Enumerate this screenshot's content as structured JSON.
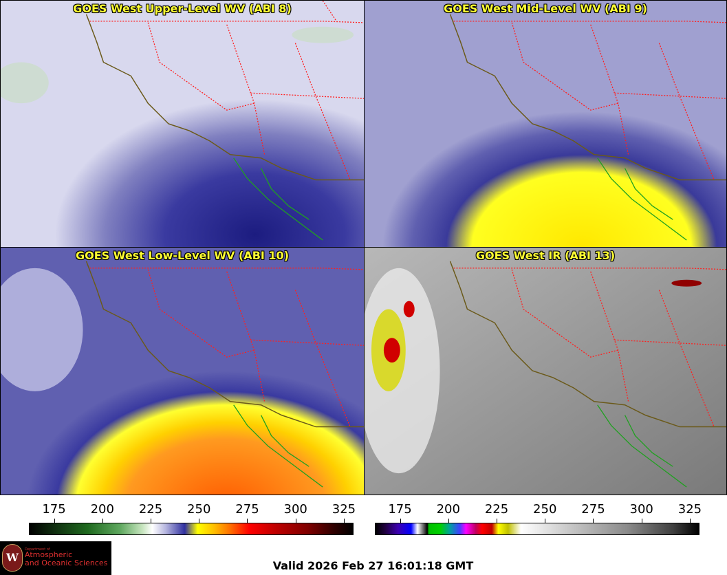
{
  "panels": [
    {
      "title": "GOES West Upper-Level WV (ABI 8)"
    },
    {
      "title": "GOES West Mid-Level WV (ABI 9)"
    },
    {
      "title": "GOES West Low-Level WV (ABI 10)"
    },
    {
      "title": "GOES West IR (ABI 13)"
    }
  ],
  "colorbars": {
    "left": {
      "ticks": [
        "175",
        "200",
        "225",
        "250",
        "275",
        "300",
        "325"
      ],
      "range": [
        162,
        330
      ]
    },
    "right": {
      "ticks": [
        "175",
        "200",
        "225",
        "250",
        "275",
        "300",
        "325"
      ],
      "range": [
        162,
        330
      ]
    }
  },
  "logo": {
    "small": "Department of",
    "line1": "Atmospheric",
    "line2": "and Oceanic Sciences",
    "seal_letter": "W"
  },
  "footer": {
    "valid": "Valid 2026 Feb 27 16:01:18 GMT"
  },
  "colors": {
    "title_text": "#ffff33",
    "state_borders": "#ff2020",
    "coastline": "#6b5a1a",
    "mexico_coast": "#20a020"
  }
}
